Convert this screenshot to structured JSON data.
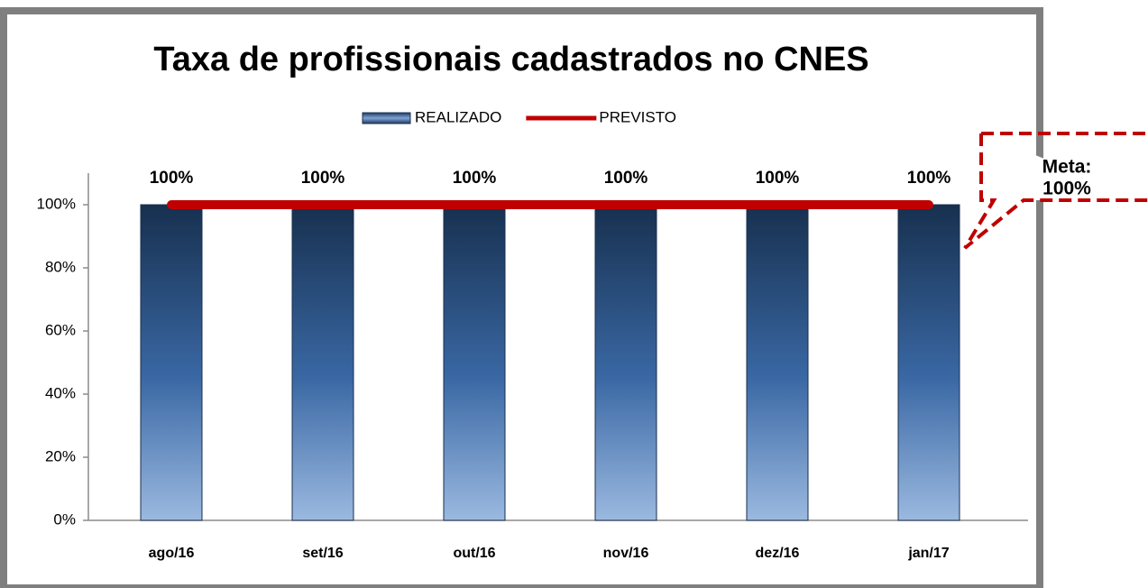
{
  "chart_data": {
    "type": "bar",
    "title": "Taxa de profissionais cadastrados no CNES",
    "categories": [
      "ago/16",
      "set/16",
      "out/16",
      "nov/16",
      "dez/16",
      "jan/17"
    ],
    "series": [
      {
        "name": "REALIZADO",
        "type": "bar",
        "color": "#3a68a4",
        "values": [
          100,
          100,
          100,
          100,
          100,
          100
        ],
        "value_labels": [
          "100%",
          "100%",
          "100%",
          "100%",
          "100%",
          "100%"
        ]
      },
      {
        "name": "PREVISTO",
        "type": "line",
        "color": "#c00000",
        "values": [
          100,
          100,
          100,
          100,
          100,
          100
        ]
      }
    ],
    "ylim": [
      0,
      110
    ],
    "yticks": [
      {
        "value": 0,
        "label": "0%"
      },
      {
        "value": 20,
        "label": "20%"
      },
      {
        "value": 40,
        "label": "40%"
      },
      {
        "value": 60,
        "label": "60%"
      },
      {
        "value": 80,
        "label": "80%"
      },
      {
        "value": 100,
        "label": "100%"
      }
    ],
    "legend": "top",
    "annotation": [
      "Meta:",
      "100%"
    ]
  }
}
